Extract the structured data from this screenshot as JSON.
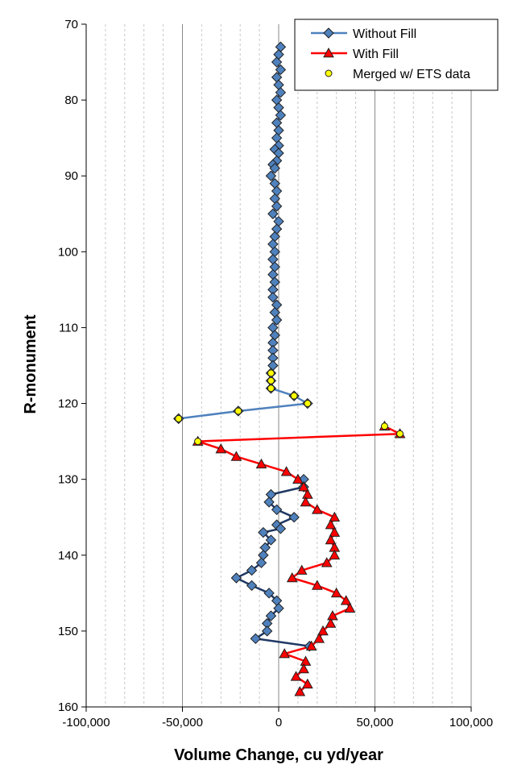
{
  "chart_data": {
    "type": "line",
    "title": "",
    "xlabel": "Volume Change, cu yd/year",
    "ylabel": "R-monument",
    "xlim": [
      -100000,
      100000
    ],
    "ylim": [
      70,
      160
    ],
    "y_inverted": true,
    "x_ticks": [
      -100000,
      -50000,
      0,
      50000,
      100000
    ],
    "x_tick_labels": [
      "-100,000",
      "-50,000",
      "0",
      "50,000",
      "100,000"
    ],
    "y_ticks": [
      70,
      80,
      90,
      100,
      110,
      120,
      130,
      140,
      150,
      160
    ],
    "y_tick_labels": [
      "70",
      "80",
      "90",
      "100",
      "110",
      "120",
      "130",
      "140",
      "150",
      "160"
    ],
    "grid": {
      "major_vertical": true,
      "minor_vertical_dashed": true,
      "horizontal": false
    },
    "legend_position": "top-right",
    "series": [
      {
        "name": "Without Fill",
        "color": "#4F81BD",
        "marker": "diamond",
        "points": [
          [
            1000,
            73
          ],
          [
            0,
            74
          ],
          [
            -1000,
            75
          ],
          [
            1000,
            76
          ],
          [
            -1000,
            77
          ],
          [
            0,
            78
          ],
          [
            1000,
            79
          ],
          [
            -1000,
            80
          ],
          [
            0,
            81
          ],
          [
            1000,
            82
          ],
          [
            -1000,
            83
          ],
          [
            0,
            84
          ],
          [
            -1000,
            85
          ],
          [
            0,
            86
          ],
          [
            -2000,
            86.5
          ],
          [
            0,
            87
          ],
          [
            -1000,
            88
          ],
          [
            -3000,
            88.5
          ],
          [
            -2000,
            89
          ],
          [
            -4000,
            90
          ],
          [
            -2000,
            91
          ],
          [
            -1000,
            92
          ],
          [
            -2000,
            93
          ],
          [
            -1000,
            94
          ],
          [
            -3000,
            95
          ],
          [
            0,
            96
          ],
          [
            -1000,
            97
          ],
          [
            -2000,
            98
          ],
          [
            -3000,
            99
          ],
          [
            -2000,
            100
          ],
          [
            -3000,
            101
          ],
          [
            -2000,
            102
          ],
          [
            -3000,
            103
          ],
          [
            -2000,
            104
          ],
          [
            -3000,
            105
          ],
          [
            -3000,
            106
          ],
          [
            -1000,
            107
          ],
          [
            -2000,
            108
          ],
          [
            -1000,
            109
          ],
          [
            -3000,
            110
          ],
          [
            -2000,
            111
          ],
          [
            -3000,
            112
          ],
          [
            -3000,
            113
          ],
          [
            -3000,
            114
          ],
          [
            -3000,
            115
          ],
          [
            -4000,
            116
          ],
          [
            -4000,
            117
          ],
          [
            -4000,
            118
          ],
          [
            8000,
            119
          ],
          [
            15000,
            120
          ],
          [
            -21000,
            121
          ],
          [
            -52000,
            122
          ]
        ],
        "lower_branch_points": [
          [
            13000,
            130
          ],
          [
            13000,
            131
          ],
          [
            -4000,
            132
          ],
          [
            -5000,
            133
          ],
          [
            -1000,
            134
          ],
          [
            8000,
            135
          ],
          [
            -1000,
            136
          ],
          [
            1000,
            136.5
          ],
          [
            -8000,
            137
          ],
          [
            -4000,
            138
          ],
          [
            -7000,
            139
          ],
          [
            -8000,
            140
          ],
          [
            -9000,
            141
          ],
          [
            -14000,
            142
          ],
          [
            -22000,
            143
          ],
          [
            -14000,
            144
          ],
          [
            -5000,
            145
          ],
          [
            -1000,
            146
          ],
          [
            0,
            147
          ],
          [
            -4000,
            148
          ],
          [
            -6000,
            149
          ],
          [
            -6000,
            150
          ],
          [
            -12000,
            151
          ],
          [
            16000,
            152
          ]
        ]
      },
      {
        "name": "With Fill",
        "color": "#FF0000",
        "marker": "triangle",
        "points": [
          [
            55000,
            123
          ],
          [
            63000,
            124
          ],
          [
            -42000,
            125
          ],
          [
            -30000,
            126
          ],
          [
            -22000,
            127
          ],
          [
            -9000,
            128
          ],
          [
            4000,
            129
          ],
          [
            10000,
            130
          ],
          [
            13000,
            131
          ],
          [
            15000,
            132
          ],
          [
            14000,
            133
          ],
          [
            20000,
            134
          ],
          [
            29000,
            135
          ],
          [
            27000,
            136
          ],
          [
            29000,
            137
          ],
          [
            27000,
            138
          ],
          [
            29000,
            139
          ],
          [
            29000,
            140
          ],
          [
            25000,
            141
          ],
          [
            12000,
            142
          ],
          [
            7000,
            143
          ],
          [
            20000,
            144
          ],
          [
            30000,
            145
          ],
          [
            35000,
            146
          ],
          [
            37000,
            147
          ],
          [
            28000,
            148
          ],
          [
            27000,
            149
          ],
          [
            23000,
            150
          ],
          [
            21000,
            151
          ],
          [
            17000,
            152
          ],
          [
            3000,
            153
          ],
          [
            14000,
            154
          ],
          [
            13000,
            155
          ],
          [
            9000,
            156
          ],
          [
            15000,
            157
          ],
          [
            11000,
            158
          ]
        ]
      },
      {
        "name": "Merged w/ ETS data",
        "color": "#FFFF00",
        "marker": "circle",
        "points": [
          [
            -4000,
            116
          ],
          [
            -4000,
            117
          ],
          [
            -4000,
            118
          ],
          [
            8000,
            119
          ],
          [
            15000,
            120
          ],
          [
            -21000,
            121
          ],
          [
            -52000,
            122
          ],
          [
            55000,
            123
          ],
          [
            63000,
            124
          ],
          [
            -42000,
            125
          ]
        ]
      }
    ]
  }
}
